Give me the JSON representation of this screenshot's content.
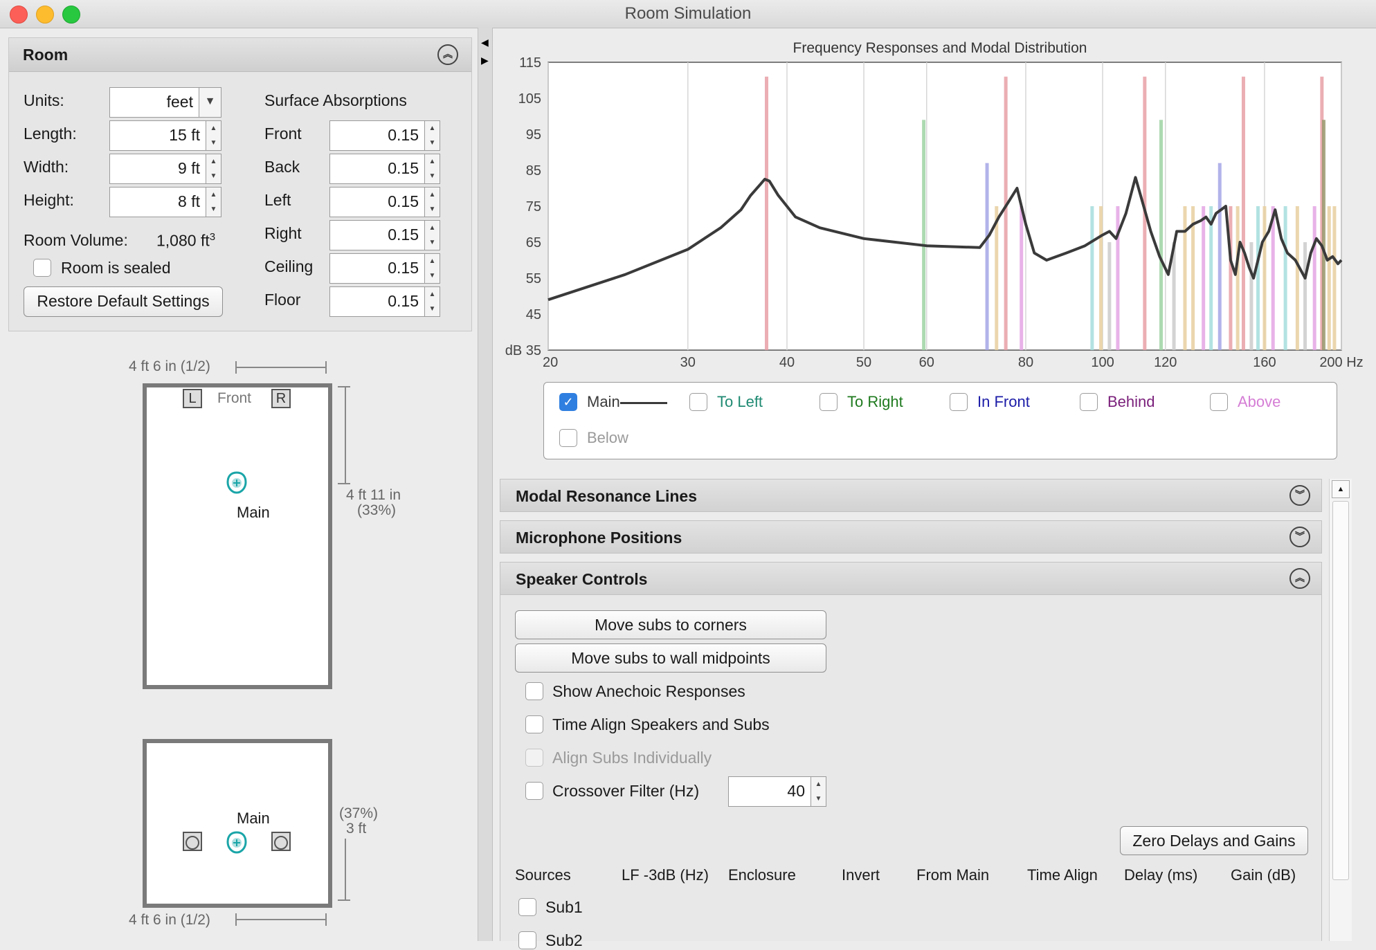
{
  "window": {
    "title": "Room Simulation"
  },
  "room": {
    "header": "Room",
    "units_label": "Units:",
    "units_value": "feet",
    "length_label": "Length:",
    "length_value": "15 ft",
    "width_label": "Width:",
    "width_value": "9 ft",
    "height_label": "Height:",
    "height_value": "8 ft",
    "volume_label": "Room Volume:",
    "volume_value": "1,080 ft",
    "volume_sup": "3",
    "sealed_label": "Room is sealed",
    "restore_label": "Restore Default Settings",
    "absorptions_title": "Surface Absorptions",
    "surfaces": [
      {
        "label": "Front",
        "value": "0.15"
      },
      {
        "label": "Back",
        "value": "0.15"
      },
      {
        "label": "Left",
        "value": "0.15"
      },
      {
        "label": "Right",
        "value": "0.15"
      },
      {
        "label": "Ceiling",
        "value": "0.15"
      },
      {
        "label": "Floor",
        "value": "0.15"
      }
    ]
  },
  "plan_view": {
    "top_dim": "4 ft 6 in (1/2)",
    "front_label": "Front",
    "left_speaker": "L",
    "right_speaker": "R",
    "listener": "Main",
    "side_dim_1": "4 ft 11 in",
    "side_dim_2": "(33%)"
  },
  "side_view": {
    "listener": "Main",
    "side_dim_1": "(37%)",
    "side_dim_2": "3 ft",
    "bottom_dim": "4 ft 6 in (1/2)"
  },
  "chart_data": {
    "type": "line",
    "title": "Frequency Responses and Modal Distribution",
    "ylabel": "dB",
    "xlabel": "Hz",
    "x_scale": "log",
    "xlim": [
      20,
      200
    ],
    "ylim": [
      35,
      115
    ],
    "xticks": [
      20,
      30,
      40,
      50,
      60,
      80,
      100,
      120,
      160,
      200
    ],
    "xtick_labels": [
      "20",
      "30",
      "40",
      "50",
      "60",
      "80",
      "100",
      "120",
      "160",
      "200 Hz"
    ],
    "yticks": [
      35,
      45,
      55,
      65,
      75,
      85,
      95,
      105,
      115
    ],
    "ytick_labels": [
      "dB 35",
      "45",
      "55",
      "65",
      "75",
      "85",
      "95",
      "105",
      "115"
    ],
    "series": [
      {
        "name": "Main",
        "color": "#3a3a3a",
        "x": [
          20,
          25,
          30,
          33,
          35,
          36,
          37,
          37.5,
          38,
          39,
          41,
          44,
          50,
          60,
          70,
          72,
          74,
          76,
          78,
          80,
          82,
          85,
          90,
          95,
          100,
          102,
          104,
          107,
          110,
          113,
          115,
          118,
          121,
          124,
          127,
          130,
          133,
          135,
          137,
          139,
          141,
          143,
          145,
          147,
          149,
          151,
          153,
          155,
          157,
          159,
          162,
          165,
          168,
          171,
          175,
          180,
          183,
          186,
          189,
          192,
          195,
          198,
          200
        ],
        "y": [
          49,
          56,
          63,
          69,
          74,
          78,
          81,
          82.5,
          82,
          78,
          72,
          69,
          66,
          64,
          63.5,
          67,
          72,
          76,
          80,
          70,
          62,
          60,
          62,
          64,
          67,
          68,
          66,
          73,
          83,
          74,
          68,
          61,
          56,
          68,
          68,
          70,
          71,
          72,
          70,
          73,
          74,
          75,
          60,
          56,
          65,
          62,
          58,
          55,
          60,
          65,
          68,
          74,
          66,
          62,
          60,
          55,
          62,
          66,
          64,
          60,
          61,
          59,
          60
        ]
      }
    ],
    "modal_lines": [
      {
        "x": 37.7,
        "top": 111,
        "color": "#e8a0a6"
      },
      {
        "x": 59.5,
        "top": 99,
        "color": "#9fd4a4"
      },
      {
        "x": 71.5,
        "top": 87,
        "color": "#a5a6e6"
      },
      {
        "x": 73.5,
        "top": 75,
        "color": "#e8d0a0"
      },
      {
        "x": 75.5,
        "top": 111,
        "color": "#e8a0a6"
      },
      {
        "x": 79,
        "top": 75,
        "color": "#e4a6e4"
      },
      {
        "x": 97,
        "top": 75,
        "color": "#a6dede"
      },
      {
        "x": 99.5,
        "top": 75,
        "color": "#e8d0a0"
      },
      {
        "x": 102,
        "top": 65,
        "color": "#cccccc"
      },
      {
        "x": 104.5,
        "top": 75,
        "color": "#e4a6e4"
      },
      {
        "x": 113,
        "top": 111,
        "color": "#e8a0a6"
      },
      {
        "x": 118.5,
        "top": 99,
        "color": "#9fd4a4"
      },
      {
        "x": 123,
        "top": 65,
        "color": "#cccccc"
      },
      {
        "x": 127,
        "top": 75,
        "color": "#e8d0a0"
      },
      {
        "x": 130,
        "top": 75,
        "color": "#e8d0a0"
      },
      {
        "x": 134,
        "top": 75,
        "color": "#e4a6e4"
      },
      {
        "x": 137,
        "top": 75,
        "color": "#a6dede"
      },
      {
        "x": 140.5,
        "top": 87,
        "color": "#a5a6e6"
      },
      {
        "x": 145,
        "top": 75,
        "color": "#e8a0a6"
      },
      {
        "x": 148,
        "top": 75,
        "color": "#e8d0a0"
      },
      {
        "x": 150.5,
        "top": 111,
        "color": "#e8a0a6"
      },
      {
        "x": 154,
        "top": 65,
        "color": "#cccccc"
      },
      {
        "x": 157,
        "top": 75,
        "color": "#a6dede"
      },
      {
        "x": 160,
        "top": 75,
        "color": "#e8d0a0"
      },
      {
        "x": 164,
        "top": 75,
        "color": "#e4a6e4"
      },
      {
        "x": 170,
        "top": 75,
        "color": "#a6dede"
      },
      {
        "x": 176,
        "top": 75,
        "color": "#e8d0a0"
      },
      {
        "x": 180,
        "top": 65,
        "color": "#cccccc"
      },
      {
        "x": 185,
        "top": 75,
        "color": "#e4a6e4"
      },
      {
        "x": 189,
        "top": 111,
        "color": "#e8a0a6"
      },
      {
        "x": 190,
        "top": 99,
        "color": "#9a9a6e"
      },
      {
        "x": 193,
        "top": 75,
        "color": "#e8d0a0"
      },
      {
        "x": 196,
        "top": 75,
        "color": "#e8d0a0"
      }
    ]
  },
  "legend": {
    "items": [
      {
        "label": "Main",
        "checked": true,
        "color": "#3a3a3a"
      },
      {
        "label": "To Left",
        "checked": false,
        "color": "#1f8a72"
      },
      {
        "label": "To Right",
        "checked": false,
        "color": "#1f7a1f"
      },
      {
        "label": "In Front",
        "checked": false,
        "color": "#1c1ca8"
      },
      {
        "label": "Behind",
        "checked": false,
        "color": "#7a1f7a"
      },
      {
        "label": "Above",
        "checked": false,
        "color": "#d57ed5"
      },
      {
        "label": "Below",
        "checked": false,
        "color": "#9a9a9a"
      }
    ]
  },
  "sections": {
    "modal": "Modal Resonance Lines",
    "mic": "Microphone Positions",
    "speaker": "Speaker Controls"
  },
  "speaker_controls": {
    "corners_btn": "Move subs to corners",
    "midpoints_btn": "Move subs to wall midpoints",
    "anechoic": "Show Anechoic Responses",
    "time_align": "Time Align Speakers and Subs",
    "align_individually": "Align Subs Individually",
    "crossover": "Crossover Filter (Hz)",
    "crossover_value": "40",
    "zero_btn": "Zero Delays and Gains",
    "columns": [
      "Sources",
      "LF -3dB (Hz)",
      "Enclosure",
      "Invert",
      "From Main",
      "Time Align",
      "Delay (ms)",
      "Gain (dB)"
    ],
    "rows": [
      "Sub1",
      "Sub2"
    ]
  }
}
